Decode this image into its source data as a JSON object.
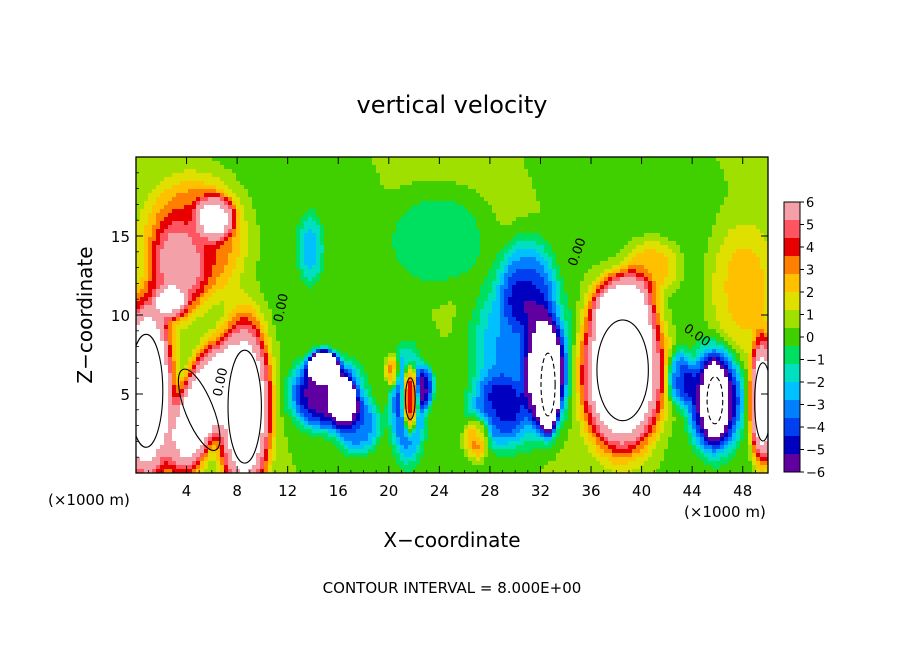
{
  "chart_data": {
    "type": "heatmap",
    "title": "vertical velocity",
    "xlabel": "X−coordinate",
    "ylabel": "Z−coordinate",
    "x_unit_left": "(×1000 m)",
    "x_unit_right": "(×1000 m)",
    "footer": "CONTOUR INTERVAL = 8.000E+00",
    "xlim": [
      0,
      50
    ],
    "ylim": [
      0,
      20
    ],
    "x_ticks": [
      4,
      8,
      12,
      16,
      20,
      24,
      28,
      32,
      36,
      40,
      44,
      48
    ],
    "x_tick_labels": [
      "4",
      "8",
      "12",
      "16",
      "20",
      "24",
      "28",
      "32",
      "36",
      "40",
      "44",
      "48"
    ],
    "y_ticks": [
      5,
      10,
      15
    ],
    "y_tick_labels": [
      "5",
      "10",
      "15"
    ],
    "colorbar": {
      "min": -6,
      "max": 6,
      "ticks": [
        6,
        5,
        4,
        3,
        2,
        1,
        0,
        -1,
        -2,
        -3,
        -4,
        -5,
        -6
      ],
      "tick_labels": [
        "6",
        "5",
        "4",
        "3",
        "2",
        "1",
        "0",
        "−1",
        "−2",
        "−3",
        "−4",
        "−5",
        "−6"
      ],
      "colors": [
        "#f4a0a8",
        "#ff5560",
        "#e80000",
        "#ff8000",
        "#ffc000",
        "#e0e000",
        "#a0e000",
        "#40d000",
        "#00e060",
        "#00e0c0",
        "#00c0ff",
        "#0080ff",
        "#0040f0",
        "#0000c0",
        "#6000a0"
      ]
    },
    "contour_labels": [
      {
        "text": "0.00",
        "x": 11.8,
        "z": 10.4,
        "angle": -78
      },
      {
        "text": "0.00",
        "x": 7.0,
        "z": 5.7,
        "angle": -78
      },
      {
        "text": "0.00",
        "x": 35.2,
        "z": 13.9,
        "angle": -70
      },
      {
        "text": "0.00",
        "x": 44.2,
        "z": 8.5,
        "angle": 35
      }
    ],
    "features": [
      {
        "x": 0.8,
        "z": 5.2,
        "rx": 2.4,
        "rz": 6.5,
        "v": 9,
        "contour": "solid"
      },
      {
        "x": 5.0,
        "z": 4.0,
        "rx": 2.0,
        "rz": 5.0,
        "v": 8,
        "contour": "solid",
        "angle": 22
      },
      {
        "x": 8.6,
        "z": 4.2,
        "rx": 2.4,
        "rz": 6.5,
        "v": 8,
        "contour": "solid"
      },
      {
        "x": 4.6,
        "z": 14.8,
        "rx": 4.5,
        "rz": 4.5,
        "v": 3.4
      },
      {
        "x": 6.3,
        "z": 16.2,
        "rx": 1.8,
        "rz": 1.6,
        "v": 4.2
      },
      {
        "x": 2.8,
        "z": 10.8,
        "rx": 1.4,
        "rz": 1.2,
        "v": 3.6
      },
      {
        "x": 3.2,
        "z": 12.5,
        "rx": 2.5,
        "rz": 3.5,
        "v": 2.5
      },
      {
        "x": 15.0,
        "z": 5.0,
        "rx": 3.2,
        "rz": 2.6,
        "v": -6.0
      },
      {
        "x": 14.8,
        "z": 6.8,
        "rx": 1.3,
        "rz": 1.1,
        "v": -9,
        "white": true
      },
      {
        "x": 16.3,
        "z": 4.7,
        "rx": 1.1,
        "rz": 1.4,
        "v": -9,
        "white": true
      },
      {
        "x": 17.5,
        "z": 3.0,
        "rx": 2.0,
        "rz": 2.0,
        "v": -3.5
      },
      {
        "x": 21.5,
        "z": 4.3,
        "rx": 1.6,
        "rz": 4.0,
        "v": -4.2
      },
      {
        "x": 21.7,
        "z": 4.7,
        "rx": 0.7,
        "rz": 2.4,
        "v": 8,
        "contour": "solid"
      },
      {
        "x": 20.3,
        "z": 6.4,
        "rx": 0.6,
        "rz": 1.2,
        "v": 3.5
      },
      {
        "x": 22.9,
        "z": 5.5,
        "rx": 0.8,
        "rz": 1.5,
        "v": -4.2
      },
      {
        "x": 30.5,
        "z": 7.5,
        "rx": 4.5,
        "rz": 6.5,
        "v": -3.6
      },
      {
        "x": 32.4,
        "z": 6.3,
        "rx": 1.8,
        "rz": 4.0,
        "v": -6.0
      },
      {
        "x": 32.6,
        "z": 5.6,
        "rx": 0.9,
        "rz": 3.2,
        "v": -10,
        "white": true,
        "contour": "dashed"
      },
      {
        "x": 28.5,
        "z": 3.8,
        "rx": 2.6,
        "rz": 2.6,
        "v": -2.6
      },
      {
        "x": 27.0,
        "z": 2.3,
        "rx": 1.1,
        "rz": 1.5,
        "v": 3.4
      },
      {
        "x": 38.5,
        "z": 6.5,
        "rx": 3.7,
        "rz": 5.8,
        "v": 9,
        "contour": "solid"
      },
      {
        "x": 38.5,
        "z": 10.5,
        "rx": 2.7,
        "rz": 2.5,
        "v": 4.2
      },
      {
        "x": 40.8,
        "z": 13.0,
        "rx": 2.5,
        "rz": 2.0,
        "v": 2.2
      },
      {
        "x": 45.8,
        "z": 4.6,
        "rx": 2.4,
        "rz": 3.8,
        "v": -6.5
      },
      {
        "x": 45.8,
        "z": 4.6,
        "rx": 1.0,
        "rz": 2.4,
        "v": -10,
        "white": true,
        "contour": "dashed"
      },
      {
        "x": 43.0,
        "z": 6.0,
        "rx": 1.2,
        "rz": 2.0,
        "v": -4.0
      },
      {
        "x": 49.6,
        "z": 4.5,
        "rx": 1.2,
        "rz": 4.5,
        "v": 8,
        "contour": "solid"
      },
      {
        "x": 48.0,
        "z": 11.5,
        "rx": 3.0,
        "rz": 5.0,
        "v": 1.9
      },
      {
        "x": 13.8,
        "z": 14.2,
        "rx": 1.2,
        "rz": 2.5,
        "v": -2.3
      },
      {
        "x": 24.0,
        "z": 14.8,
        "rx": 4.5,
        "rz": 3.5,
        "v": -1.5
      },
      {
        "x": 31.0,
        "z": 12.0,
        "rx": 2.5,
        "rz": 3.5,
        "v": -2.6
      }
    ]
  }
}
